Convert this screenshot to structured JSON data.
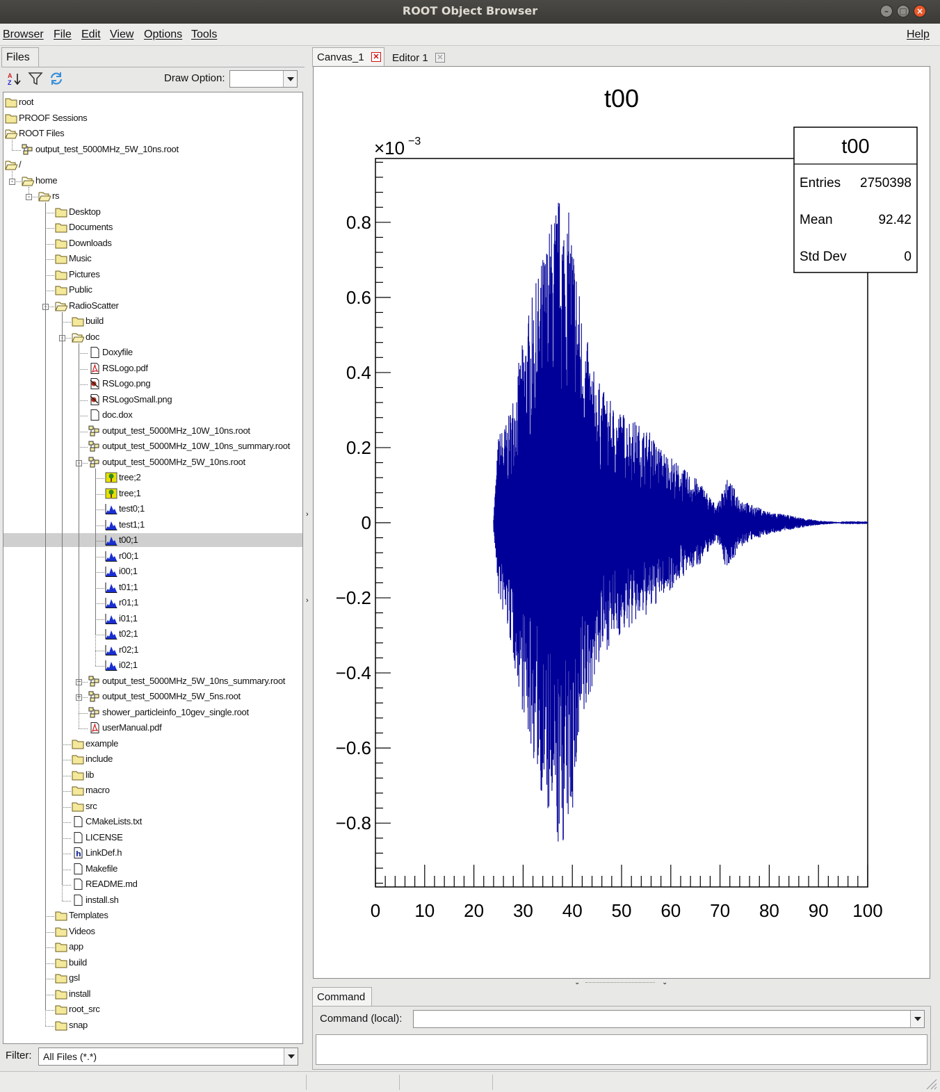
{
  "window": {
    "title": "ROOT Object Browser"
  },
  "menu": {
    "items": [
      "Browser",
      "File",
      "Edit",
      "View",
      "Options",
      "Tools"
    ],
    "help": "Help"
  },
  "left": {
    "tab": "Files",
    "draw_option_label": "Draw Option:",
    "draw_option_value": "",
    "filter_label": "Filter:",
    "filter_value": "All Files (*.*)"
  },
  "tree": [
    {
      "label": "root",
      "icon": "folder",
      "depth": 0
    },
    {
      "label": "PROOF Sessions",
      "icon": "folder",
      "depth": 0
    },
    {
      "label": "ROOT Files",
      "icon": "folder-open",
      "depth": 0
    },
    {
      "label": "output_test_5000MHz_5W_10ns.root",
      "icon": "root-file",
      "depth": 1
    },
    {
      "label": "/",
      "icon": "folder-open",
      "depth": 0
    },
    {
      "label": "home",
      "icon": "folder-open",
      "depth": 1,
      "expander": "-"
    },
    {
      "label": "rs",
      "icon": "folder-open",
      "depth": 2,
      "expander": "-"
    },
    {
      "label": "Desktop",
      "icon": "folder",
      "depth": 3
    },
    {
      "label": "Documents",
      "icon": "folder",
      "depth": 3
    },
    {
      "label": "Downloads",
      "icon": "folder",
      "depth": 3
    },
    {
      "label": "Music",
      "icon": "folder",
      "depth": 3
    },
    {
      "label": "Pictures",
      "icon": "folder",
      "depth": 3
    },
    {
      "label": "Public",
      "icon": "folder",
      "depth": 3
    },
    {
      "label": "RadioScatter",
      "icon": "folder-open",
      "depth": 3,
      "expander": "-"
    },
    {
      "label": "build",
      "icon": "folder",
      "depth": 4
    },
    {
      "label": "doc",
      "icon": "folder-open",
      "depth": 4,
      "expander": "-"
    },
    {
      "label": "Doxyfile",
      "icon": "doc",
      "depth": 5
    },
    {
      "label": "RSLogo.pdf",
      "icon": "pdf",
      "depth": 5
    },
    {
      "label": "RSLogo.png",
      "icon": "image",
      "depth": 5
    },
    {
      "label": "RSLogoSmall.png",
      "icon": "image",
      "depth": 5
    },
    {
      "label": "doc.dox",
      "icon": "doc",
      "depth": 5
    },
    {
      "label": "output_test_5000MHz_10W_10ns.root",
      "icon": "root-file",
      "depth": 5
    },
    {
      "label": "output_test_5000MHz_10W_10ns_summary.root",
      "icon": "root-file",
      "depth": 5
    },
    {
      "label": "output_test_5000MHz_5W_10ns.root",
      "icon": "root-file",
      "depth": 5,
      "expander": "-"
    },
    {
      "label": "tree;2",
      "icon": "tree",
      "depth": 6
    },
    {
      "label": "tree;1",
      "icon": "tree",
      "depth": 6
    },
    {
      "label": "test0;1",
      "icon": "histo",
      "depth": 6
    },
    {
      "label": "test1;1",
      "icon": "histo",
      "depth": 6
    },
    {
      "label": "t00;1",
      "icon": "histo",
      "depth": 6,
      "selected": true
    },
    {
      "label": "r00;1",
      "icon": "histo",
      "depth": 6
    },
    {
      "label": "i00;1",
      "icon": "histo",
      "depth": 6
    },
    {
      "label": "t01;1",
      "icon": "histo",
      "depth": 6
    },
    {
      "label": "r01;1",
      "icon": "histo",
      "depth": 6
    },
    {
      "label": "i01;1",
      "icon": "histo",
      "depth": 6
    },
    {
      "label": "t02;1",
      "icon": "histo",
      "depth": 6
    },
    {
      "label": "r02;1",
      "icon": "histo",
      "depth": 6
    },
    {
      "label": "i02;1",
      "icon": "histo",
      "depth": 6
    },
    {
      "label": "output_test_5000MHz_5W_10ns_summary.root",
      "icon": "root-file",
      "depth": 5,
      "expander": "+"
    },
    {
      "label": "output_test_5000MHz_5W_5ns.root",
      "icon": "root-file",
      "depth": 5,
      "expander": "+"
    },
    {
      "label": "shower_particleinfo_10gev_single.root",
      "icon": "root-file",
      "depth": 5
    },
    {
      "label": "userManual.pdf",
      "icon": "pdf",
      "depth": 5
    },
    {
      "label": "example",
      "icon": "folder",
      "depth": 4
    },
    {
      "label": "include",
      "icon": "folder",
      "depth": 4
    },
    {
      "label": "lib",
      "icon": "folder",
      "depth": 4
    },
    {
      "label": "macro",
      "icon": "folder",
      "depth": 4
    },
    {
      "label": "src",
      "icon": "folder",
      "depth": 4
    },
    {
      "label": "CMakeLists.txt",
      "icon": "doc",
      "depth": 4
    },
    {
      "label": "LICENSE",
      "icon": "doc",
      "depth": 4
    },
    {
      "label": "LinkDef.h",
      "icon": "header",
      "depth": 4
    },
    {
      "label": "Makefile",
      "icon": "doc",
      "depth": 4
    },
    {
      "label": "README.md",
      "icon": "doc",
      "depth": 4
    },
    {
      "label": "install.sh",
      "icon": "doc",
      "depth": 4
    },
    {
      "label": "Templates",
      "icon": "folder",
      "depth": 3
    },
    {
      "label": "Videos",
      "icon": "folder",
      "depth": 3
    },
    {
      "label": "app",
      "icon": "folder",
      "depth": 3
    },
    {
      "label": "build",
      "icon": "folder",
      "depth": 3
    },
    {
      "label": "gsl",
      "icon": "folder",
      "depth": 3
    },
    {
      "label": "install",
      "icon": "folder",
      "depth": 3
    },
    {
      "label": "root_src",
      "icon": "folder",
      "depth": 3
    },
    {
      "label": "snap",
      "icon": "folder",
      "depth": 3
    }
  ],
  "right": {
    "tabs": [
      {
        "label": "Canvas_1",
        "active": true
      },
      {
        "label": "Editor 1",
        "active": false
      }
    ],
    "command_tab": "Command",
    "command_label": "Command (local):",
    "command_value": ""
  },
  "stats": {
    "title": "t00",
    "rows": [
      {
        "label": "Entries",
        "value": "2750398"
      },
      {
        "label": "Mean",
        "value": "92.42"
      },
      {
        "label": "Std Dev",
        "value": "0"
      }
    ]
  },
  "colors": {
    "trace": "#000099",
    "folder": "#f4e89a",
    "selection": "#cfcfcf"
  },
  "chart_data": {
    "type": "line",
    "title": "t00",
    "y_exponent_label": "×10",
    "y_exponent": "−3",
    "xlim": [
      0,
      100
    ],
    "ylim": [
      -0.97,
      0.97
    ],
    "x_ticks": [
      "0",
      "10",
      "20",
      "30",
      "40",
      "50",
      "60",
      "70",
      "80",
      "90",
      "100"
    ],
    "y_ticks": [
      "0.8",
      "0.6",
      "0.4",
      "0.2",
      "0",
      "−0.2",
      "−0.4",
      "−0.6",
      "−0.8"
    ],
    "y_tick_values": [
      0.8,
      0.6,
      0.4,
      0.2,
      0,
      -0.2,
      -0.4,
      -0.6,
      -0.8
    ],
    "envelope": {
      "x": [
        24.0,
        25.0,
        27.0,
        29.0,
        31.0,
        33.0,
        35.0,
        37.0,
        38.5,
        40.0,
        42.0,
        44.0,
        46.0,
        48.0,
        50.0,
        52.0,
        54.0,
        56.0,
        58.0,
        60.0,
        62.0,
        64.0,
        66.0,
        68.0,
        69.0,
        70.0,
        71.0,
        72.0,
        74.0,
        76.0,
        78.0,
        80.0,
        82.0,
        84.0,
        86.0,
        88.0,
        90.0,
        95.0,
        100.0
      ],
      "upper": [
        0.02,
        0.24,
        0.28,
        0.42,
        0.56,
        0.66,
        0.78,
        0.88,
        0.86,
        0.8,
        0.56,
        0.42,
        0.36,
        0.32,
        0.3,
        0.28,
        0.26,
        0.24,
        0.2,
        0.18,
        0.15,
        0.13,
        0.11,
        0.07,
        0.05,
        0.06,
        0.12,
        0.11,
        0.07,
        0.05,
        0.04,
        0.03,
        0.025,
        0.02,
        0.015,
        0.01,
        0.006,
        0.001,
        0.001
      ],
      "lower": [
        -0.02,
        -0.2,
        -0.3,
        -0.44,
        -0.58,
        -0.68,
        -0.8,
        -0.88,
        -0.86,
        -0.78,
        -0.58,
        -0.44,
        -0.36,
        -0.32,
        -0.3,
        -0.28,
        -0.26,
        -0.24,
        -0.2,
        -0.18,
        -0.15,
        -0.13,
        -0.11,
        -0.07,
        -0.05,
        -0.06,
        -0.12,
        -0.11,
        -0.07,
        -0.05,
        -0.04,
        -0.03,
        -0.025,
        -0.02,
        -0.015,
        -0.01,
        -0.006,
        -0.001,
        -0.001
      ]
    }
  }
}
